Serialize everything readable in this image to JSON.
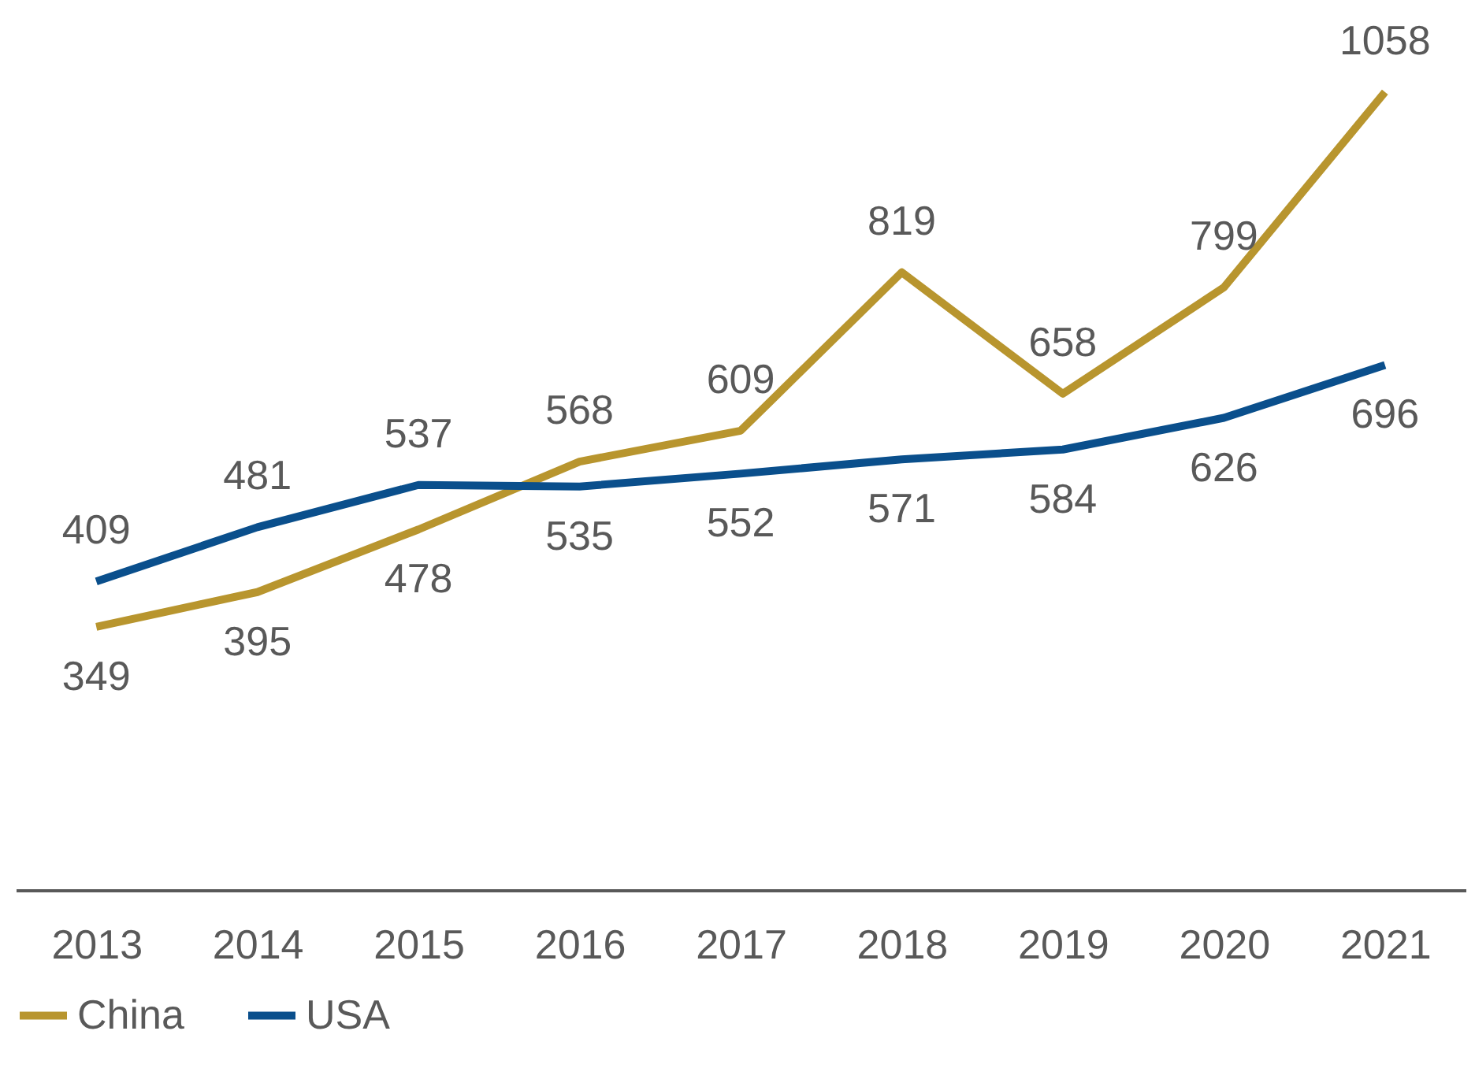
{
  "chart_data": {
    "type": "line",
    "categories": [
      "2013",
      "2014",
      "2015",
      "2016",
      "2017",
      "2018",
      "2019",
      "2020",
      "2021"
    ],
    "series": [
      {
        "name": "China",
        "color": "#b8952e",
        "values": [
          349,
          395,
          478,
          568,
          609,
          819,
          658,
          799,
          1058
        ]
      },
      {
        "name": "USA",
        "color": "#0a4f8c",
        "values": [
          409,
          481,
          537,
          535,
          552,
          571,
          584,
          626,
          696
        ]
      }
    ],
    "ylim": [
      0,
      1180
    ],
    "tick_labels": "x",
    "data_labels": true,
    "legend": "bottom"
  }
}
